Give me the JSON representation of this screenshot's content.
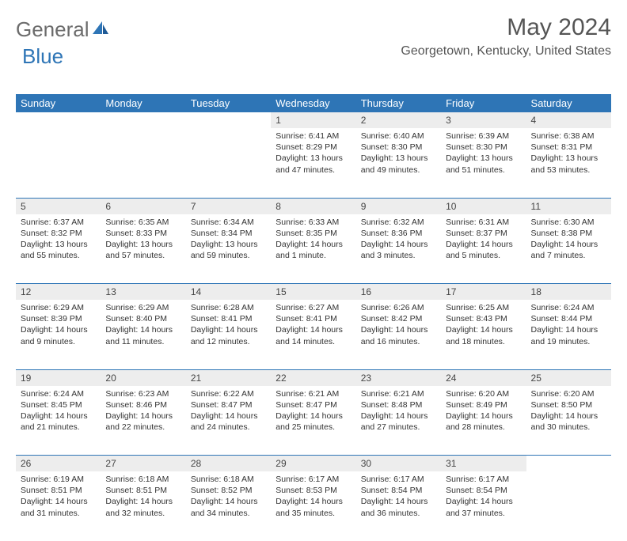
{
  "brand": {
    "part1": "General",
    "part2": "Blue"
  },
  "title": "May 2024",
  "location": "Georgetown, Kentucky, United States",
  "colors": {
    "header_bg": "#2e75b6",
    "header_text": "#ffffff",
    "datenum_bg": "#ededed",
    "border": "#2e75b6",
    "body_text": "#333333",
    "title_text": "#555555",
    "logo_gray": "#6b6b6b",
    "logo_blue": "#2e75b6"
  },
  "typography": {
    "title_fontsize": 30,
    "location_fontsize": 16,
    "header_fontsize": 13,
    "cell_fontsize": 10.5
  },
  "dayHeaders": [
    "Sunday",
    "Monday",
    "Tuesday",
    "Wednesday",
    "Thursday",
    "Friday",
    "Saturday"
  ],
  "weeks": [
    [
      null,
      null,
      null,
      {
        "n": "1",
        "sr": "Sunrise: 6:41 AM",
        "ss": "Sunset: 8:29 PM",
        "d1": "Daylight: 13 hours",
        "d2": "and 47 minutes."
      },
      {
        "n": "2",
        "sr": "Sunrise: 6:40 AM",
        "ss": "Sunset: 8:30 PM",
        "d1": "Daylight: 13 hours",
        "d2": "and 49 minutes."
      },
      {
        "n": "3",
        "sr": "Sunrise: 6:39 AM",
        "ss": "Sunset: 8:30 PM",
        "d1": "Daylight: 13 hours",
        "d2": "and 51 minutes."
      },
      {
        "n": "4",
        "sr": "Sunrise: 6:38 AM",
        "ss": "Sunset: 8:31 PM",
        "d1": "Daylight: 13 hours",
        "d2": "and 53 minutes."
      }
    ],
    [
      {
        "n": "5",
        "sr": "Sunrise: 6:37 AM",
        "ss": "Sunset: 8:32 PM",
        "d1": "Daylight: 13 hours",
        "d2": "and 55 minutes."
      },
      {
        "n": "6",
        "sr": "Sunrise: 6:35 AM",
        "ss": "Sunset: 8:33 PM",
        "d1": "Daylight: 13 hours",
        "d2": "and 57 minutes."
      },
      {
        "n": "7",
        "sr": "Sunrise: 6:34 AM",
        "ss": "Sunset: 8:34 PM",
        "d1": "Daylight: 13 hours",
        "d2": "and 59 minutes."
      },
      {
        "n": "8",
        "sr": "Sunrise: 6:33 AM",
        "ss": "Sunset: 8:35 PM",
        "d1": "Daylight: 14 hours",
        "d2": "and 1 minute."
      },
      {
        "n": "9",
        "sr": "Sunrise: 6:32 AM",
        "ss": "Sunset: 8:36 PM",
        "d1": "Daylight: 14 hours",
        "d2": "and 3 minutes."
      },
      {
        "n": "10",
        "sr": "Sunrise: 6:31 AM",
        "ss": "Sunset: 8:37 PM",
        "d1": "Daylight: 14 hours",
        "d2": "and 5 minutes."
      },
      {
        "n": "11",
        "sr": "Sunrise: 6:30 AM",
        "ss": "Sunset: 8:38 PM",
        "d1": "Daylight: 14 hours",
        "d2": "and 7 minutes."
      }
    ],
    [
      {
        "n": "12",
        "sr": "Sunrise: 6:29 AM",
        "ss": "Sunset: 8:39 PM",
        "d1": "Daylight: 14 hours",
        "d2": "and 9 minutes."
      },
      {
        "n": "13",
        "sr": "Sunrise: 6:29 AM",
        "ss": "Sunset: 8:40 PM",
        "d1": "Daylight: 14 hours",
        "d2": "and 11 minutes."
      },
      {
        "n": "14",
        "sr": "Sunrise: 6:28 AM",
        "ss": "Sunset: 8:41 PM",
        "d1": "Daylight: 14 hours",
        "d2": "and 12 minutes."
      },
      {
        "n": "15",
        "sr": "Sunrise: 6:27 AM",
        "ss": "Sunset: 8:41 PM",
        "d1": "Daylight: 14 hours",
        "d2": "and 14 minutes."
      },
      {
        "n": "16",
        "sr": "Sunrise: 6:26 AM",
        "ss": "Sunset: 8:42 PM",
        "d1": "Daylight: 14 hours",
        "d2": "and 16 minutes."
      },
      {
        "n": "17",
        "sr": "Sunrise: 6:25 AM",
        "ss": "Sunset: 8:43 PM",
        "d1": "Daylight: 14 hours",
        "d2": "and 18 minutes."
      },
      {
        "n": "18",
        "sr": "Sunrise: 6:24 AM",
        "ss": "Sunset: 8:44 PM",
        "d1": "Daylight: 14 hours",
        "d2": "and 19 minutes."
      }
    ],
    [
      {
        "n": "19",
        "sr": "Sunrise: 6:24 AM",
        "ss": "Sunset: 8:45 PM",
        "d1": "Daylight: 14 hours",
        "d2": "and 21 minutes."
      },
      {
        "n": "20",
        "sr": "Sunrise: 6:23 AM",
        "ss": "Sunset: 8:46 PM",
        "d1": "Daylight: 14 hours",
        "d2": "and 22 minutes."
      },
      {
        "n": "21",
        "sr": "Sunrise: 6:22 AM",
        "ss": "Sunset: 8:47 PM",
        "d1": "Daylight: 14 hours",
        "d2": "and 24 minutes."
      },
      {
        "n": "22",
        "sr": "Sunrise: 6:21 AM",
        "ss": "Sunset: 8:47 PM",
        "d1": "Daylight: 14 hours",
        "d2": "and 25 minutes."
      },
      {
        "n": "23",
        "sr": "Sunrise: 6:21 AM",
        "ss": "Sunset: 8:48 PM",
        "d1": "Daylight: 14 hours",
        "d2": "and 27 minutes."
      },
      {
        "n": "24",
        "sr": "Sunrise: 6:20 AM",
        "ss": "Sunset: 8:49 PM",
        "d1": "Daylight: 14 hours",
        "d2": "and 28 minutes."
      },
      {
        "n": "25",
        "sr": "Sunrise: 6:20 AM",
        "ss": "Sunset: 8:50 PM",
        "d1": "Daylight: 14 hours",
        "d2": "and 30 minutes."
      }
    ],
    [
      {
        "n": "26",
        "sr": "Sunrise: 6:19 AM",
        "ss": "Sunset: 8:51 PM",
        "d1": "Daylight: 14 hours",
        "d2": "and 31 minutes."
      },
      {
        "n": "27",
        "sr": "Sunrise: 6:18 AM",
        "ss": "Sunset: 8:51 PM",
        "d1": "Daylight: 14 hours",
        "d2": "and 32 minutes."
      },
      {
        "n": "28",
        "sr": "Sunrise: 6:18 AM",
        "ss": "Sunset: 8:52 PM",
        "d1": "Daylight: 14 hours",
        "d2": "and 34 minutes."
      },
      {
        "n": "29",
        "sr": "Sunrise: 6:17 AM",
        "ss": "Sunset: 8:53 PM",
        "d1": "Daylight: 14 hours",
        "d2": "and 35 minutes."
      },
      {
        "n": "30",
        "sr": "Sunrise: 6:17 AM",
        "ss": "Sunset: 8:54 PM",
        "d1": "Daylight: 14 hours",
        "d2": "and 36 minutes."
      },
      {
        "n": "31",
        "sr": "Sunrise: 6:17 AM",
        "ss": "Sunset: 8:54 PM",
        "d1": "Daylight: 14 hours",
        "d2": "and 37 minutes."
      },
      null
    ]
  ]
}
